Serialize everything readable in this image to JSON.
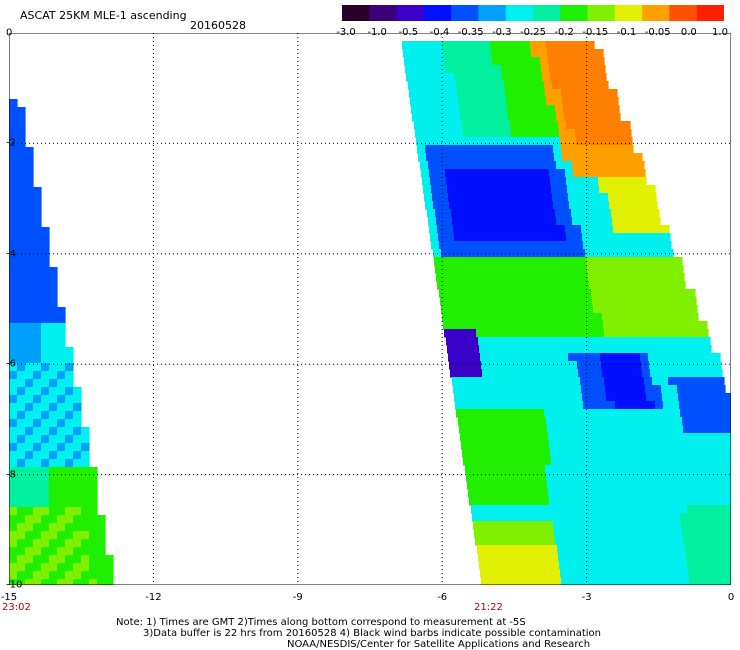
{
  "header": {
    "title": "ASCAT 25KM MLE-1 ascending",
    "date": "20160528"
  },
  "colorbar": {
    "labels": [
      "-3.0",
      "-1.0",
      "-0.5",
      "-0.4",
      "-0.35",
      "-0.3",
      "-0.25",
      "-0.2",
      "-0.15",
      "-0.1",
      "-0.05",
      "0.0",
      "1.0"
    ],
    "colors": [
      "#2a002a",
      "#3b007a",
      "#3a00c8",
      "#0010ff",
      "#0050ff",
      "#00a0ff",
      "#00f0f0",
      "#00f0a0",
      "#20f000",
      "#80f000",
      "#e0f000",
      "#ffa000",
      "#ff5000",
      "#ff2000"
    ]
  },
  "axes": {
    "x_ticks": [
      "-15",
      "-12",
      "-9",
      "-6",
      "-3",
      "0"
    ],
    "y_ticks": [
      "0",
      "-2",
      "-4",
      "-6",
      "-8",
      "-10"
    ],
    "x_range": [
      -15,
      0
    ],
    "y_range": [
      -10,
      0
    ]
  },
  "times": [
    "23:02",
    "21:22"
  ],
  "notes": {
    "line1": "Note: 1) Times are GMT 2)Times along bottom correspond to measurement at -5S",
    "line2": "3)Data buffer is 22 hrs from 20160528 4) Black wind barbs indicate possible contamination",
    "line3": "NOAA/NESDIS/Center for Satellite Applications and Research"
  }
}
